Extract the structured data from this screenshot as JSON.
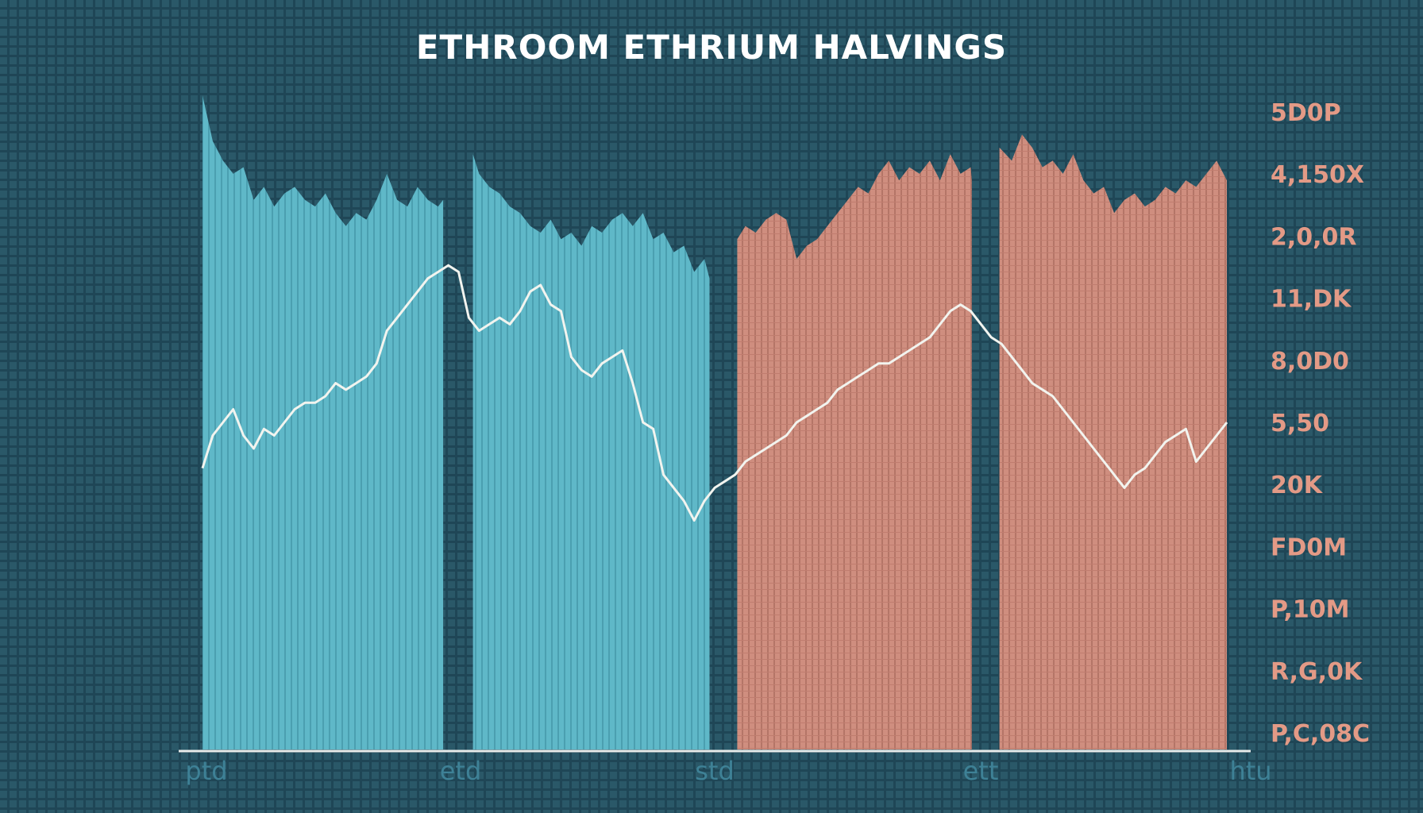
{
  "colors": {
    "background": "#1f4656",
    "grid": "#2c5d6e",
    "teal_band": "#5fb8c8",
    "salmon_band": "#cf8e7f",
    "line": "#f2f4ef",
    "axis": "#e8ecea",
    "ytick": "#e39a86",
    "xtick": "#3e8196",
    "title": "#ffffff"
  },
  "chart_data": {
    "type": "area",
    "title": "ETHROOM ETHRIUM HALVINGS",
    "xlabel": "",
    "ylabel": "",
    "grid": true,
    "y_axis_position": "right",
    "x_tick_labels": [
      "ptd",
      "etd",
      "std",
      "ett",
      "htu"
    ],
    "y_tick_labels": [
      "5D0P",
      "4,150X",
      "2,0,0R",
      "11,DK",
      "8,0D0",
      "5,50",
      "20K",
      "FD0M",
      "P,10M",
      "R,G,0K",
      "P,C,08C"
    ],
    "x_range": [
      0,
      100
    ],
    "y_range": [
      0,
      100
    ],
    "bands": [
      {
        "x": [
          0,
          23.5
        ],
        "color_role": "teal",
        "top": [
          [
            0,
            100
          ],
          [
            1,
            93
          ],
          [
            2,
            90
          ],
          [
            3,
            88
          ],
          [
            4,
            89
          ],
          [
            5,
            84
          ],
          [
            6,
            86
          ],
          [
            7,
            83
          ],
          [
            8,
            85
          ],
          [
            9,
            86
          ],
          [
            10,
            84
          ],
          [
            11,
            83
          ],
          [
            12,
            85
          ],
          [
            13,
            82
          ],
          [
            14,
            80
          ],
          [
            15,
            82
          ],
          [
            16,
            81
          ],
          [
            17,
            84
          ],
          [
            18,
            88
          ],
          [
            19,
            84
          ],
          [
            20,
            83
          ],
          [
            21,
            86
          ],
          [
            22,
            84
          ],
          [
            23,
            83
          ],
          [
            23.5,
            84
          ]
        ]
      },
      {
        "x": [
          26.4,
          49.5
        ],
        "color_role": "teal",
        "top": [
          [
            26.4,
            91
          ],
          [
            27,
            88
          ],
          [
            28,
            86
          ],
          [
            29,
            85
          ],
          [
            30,
            83
          ],
          [
            31,
            82
          ],
          [
            32,
            80
          ],
          [
            33,
            79
          ],
          [
            34,
            81
          ],
          [
            35,
            78
          ],
          [
            36,
            79
          ],
          [
            37,
            77
          ],
          [
            38,
            80
          ],
          [
            39,
            79
          ],
          [
            40,
            81
          ],
          [
            41,
            82
          ],
          [
            42,
            80
          ],
          [
            43,
            82
          ],
          [
            44,
            78
          ],
          [
            45,
            79
          ],
          [
            46,
            76
          ],
          [
            47,
            77
          ],
          [
            48,
            73
          ],
          [
            49,
            75
          ],
          [
            49.5,
            72
          ]
        ]
      },
      {
        "x": [
          52.2,
          75.1
        ],
        "color_role": "salmon",
        "top": [
          [
            52.2,
            78
          ],
          [
            53,
            80
          ],
          [
            54,
            79
          ],
          [
            55,
            81
          ],
          [
            56,
            82
          ],
          [
            57,
            81
          ],
          [
            58,
            75
          ],
          [
            59,
            77
          ],
          [
            60,
            78
          ],
          [
            61,
            80
          ],
          [
            62,
            82
          ],
          [
            63,
            84
          ],
          [
            64,
            86
          ],
          [
            65,
            85
          ],
          [
            66,
            88
          ],
          [
            67,
            90
          ],
          [
            68,
            87
          ],
          [
            69,
            89
          ],
          [
            70,
            88
          ],
          [
            71,
            90
          ],
          [
            72,
            87
          ],
          [
            73,
            91
          ],
          [
            74,
            88
          ],
          [
            75,
            89
          ],
          [
            75.1,
            87
          ]
        ]
      },
      {
        "x": [
          77.8,
          100
        ],
        "color_role": "salmon",
        "top": [
          [
            77.8,
            92
          ],
          [
            79,
            90
          ],
          [
            80,
            94
          ],
          [
            81,
            92
          ],
          [
            82,
            89
          ],
          [
            83,
            90
          ],
          [
            84,
            88
          ],
          [
            85,
            91
          ],
          [
            86,
            87
          ],
          [
            87,
            85
          ],
          [
            88,
            86
          ],
          [
            89,
            82
          ],
          [
            90,
            84
          ],
          [
            91,
            85
          ],
          [
            92,
            83
          ],
          [
            93,
            84
          ],
          [
            94,
            86
          ],
          [
            95,
            85
          ],
          [
            96,
            87
          ],
          [
            97,
            86
          ],
          [
            98,
            88
          ],
          [
            99,
            90
          ],
          [
            100,
            87
          ]
        ]
      }
    ],
    "series": [
      {
        "color_role": "line",
        "x": [
          0,
          1,
          2,
          3,
          4,
          5,
          6,
          7,
          8,
          9,
          10,
          11,
          12,
          13,
          14,
          15,
          16,
          17,
          18,
          19,
          20,
          21,
          22,
          23,
          24,
          25,
          26,
          27,
          28,
          29,
          30,
          31,
          32,
          33,
          34,
          35,
          36,
          37,
          38,
          39,
          40,
          41,
          42,
          43,
          44,
          45,
          46,
          47,
          48,
          49,
          50,
          51,
          52,
          53,
          54,
          55,
          56,
          57,
          58,
          59,
          60,
          61,
          62,
          63,
          64,
          65,
          66,
          67,
          68,
          69,
          70,
          71,
          72,
          73,
          74,
          75,
          76,
          77,
          78,
          79,
          80,
          81,
          82,
          83,
          84,
          85,
          86,
          87,
          88,
          89,
          90,
          91,
          92,
          93,
          94,
          95,
          96,
          97,
          98,
          99,
          100
        ],
        "y": [
          43,
          48,
          50,
          52,
          48,
          46,
          49,
          48,
          50,
          52,
          53,
          53,
          54,
          56,
          55,
          56,
          57,
          59,
          64,
          66,
          68,
          70,
          72,
          73,
          74,
          73,
          66,
          64,
          65,
          66,
          65,
          67,
          70,
          71,
          68,
          67,
          60,
          58,
          57,
          59,
          60,
          61,
          56,
          50,
          49,
          42,
          40,
          38,
          35,
          38,
          40,
          41,
          42,
          44,
          45,
          46,
          47,
          48,
          50,
          51,
          52,
          53,
          55,
          56,
          57,
          58,
          59,
          59,
          60,
          61,
          62,
          63,
          65,
          67,
          68,
          67,
          65,
          63,
          62,
          60,
          58,
          56,
          55,
          54,
          52,
          50,
          48,
          46,
          44,
          42,
          40,
          42,
          43,
          45,
          47,
          48,
          49,
          44,
          46,
          48,
          50
        ]
      }
    ]
  }
}
